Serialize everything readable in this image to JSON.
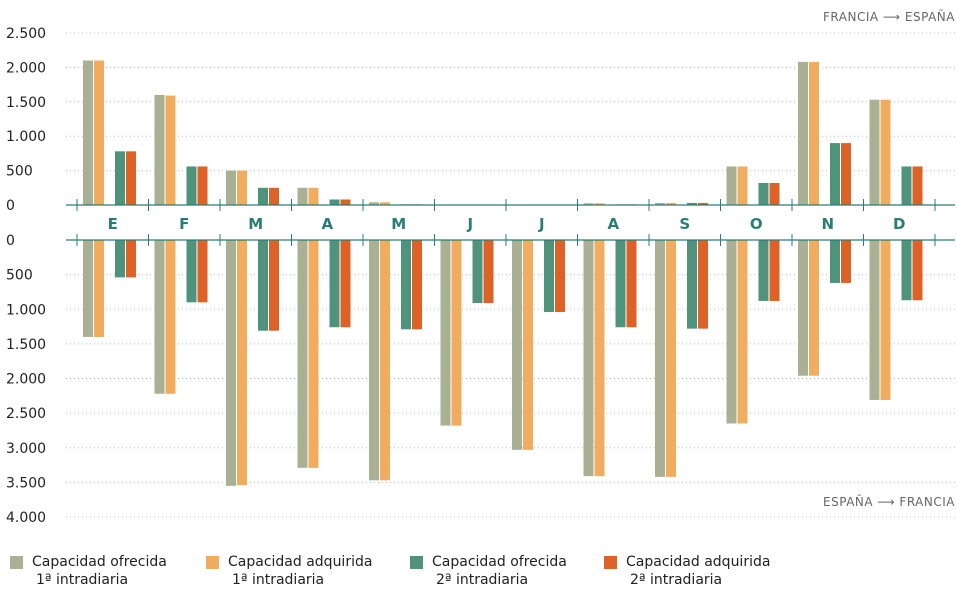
{
  "chart_data": {
    "type": "bar",
    "categories": [
      "E",
      "F",
      "M",
      "A",
      "M",
      "J",
      "J",
      "A",
      "S",
      "O",
      "N",
      "D"
    ],
    "colors": [
      "#a9b094",
      "#f0ad5f",
      "#4f937d",
      "#dd6228"
    ],
    "legend": [
      {
        "line1": "Capacidad ofrecida",
        "line2": "1ª intradiaria"
      },
      {
        "line1": "Capacidad adquirida",
        "line2": "1ª intradiaria"
      },
      {
        "line1": "Capacidad ofrecida",
        "line2": "2ª intradiaria"
      },
      {
        "line1": "Capacidad adquirida",
        "line2": "2ª intradiaria"
      }
    ],
    "top_panel": {
      "direction": "FRANCIA ⟶ ESPAÑA",
      "ylim": [
        0,
        2500
      ],
      "ticks": [
        "2.500",
        "2.000",
        "1.500",
        "1.000",
        "500",
        "0"
      ],
      "series": [
        {
          "values": [
            2100,
            1600,
            500,
            250,
            40,
            0,
            0,
            25,
            30,
            560,
            2080,
            1530
          ]
        },
        {
          "values": [
            2100,
            1590,
            500,
            250,
            40,
            0,
            0,
            25,
            30,
            560,
            2080,
            1530
          ]
        },
        {
          "values": [
            780,
            560,
            250,
            80,
            10,
            0,
            0,
            10,
            30,
            320,
            900,
            560
          ]
        },
        {
          "values": [
            780,
            560,
            250,
            80,
            10,
            0,
            0,
            10,
            30,
            320,
            900,
            560
          ]
        }
      ]
    },
    "bottom_panel": {
      "direction": "ESPAÑA ⟶ FRANCIA",
      "ylim": [
        0,
        4000
      ],
      "ticks": [
        "0",
        "500",
        "1.000",
        "1.500",
        "2.000",
        "2.500",
        "3.000",
        "3.500",
        "4.000"
      ],
      "series": [
        {
          "values": [
            1400,
            2220,
            3550,
            3290,
            3470,
            2680,
            3030,
            3410,
            3420,
            2650,
            1960,
            2310
          ]
        },
        {
          "values": [
            1400,
            2220,
            3540,
            3290,
            3470,
            2680,
            3030,
            3410,
            3420,
            2650,
            1960,
            2310
          ]
        },
        {
          "values": [
            540,
            900,
            1310,
            1260,
            1290,
            910,
            1040,
            1260,
            1280,
            880,
            620,
            870
          ]
        },
        {
          "values": [
            540,
            900,
            1310,
            1260,
            1290,
            910,
            1040,
            1260,
            1280,
            880,
            620,
            870
          ]
        }
      ]
    }
  }
}
